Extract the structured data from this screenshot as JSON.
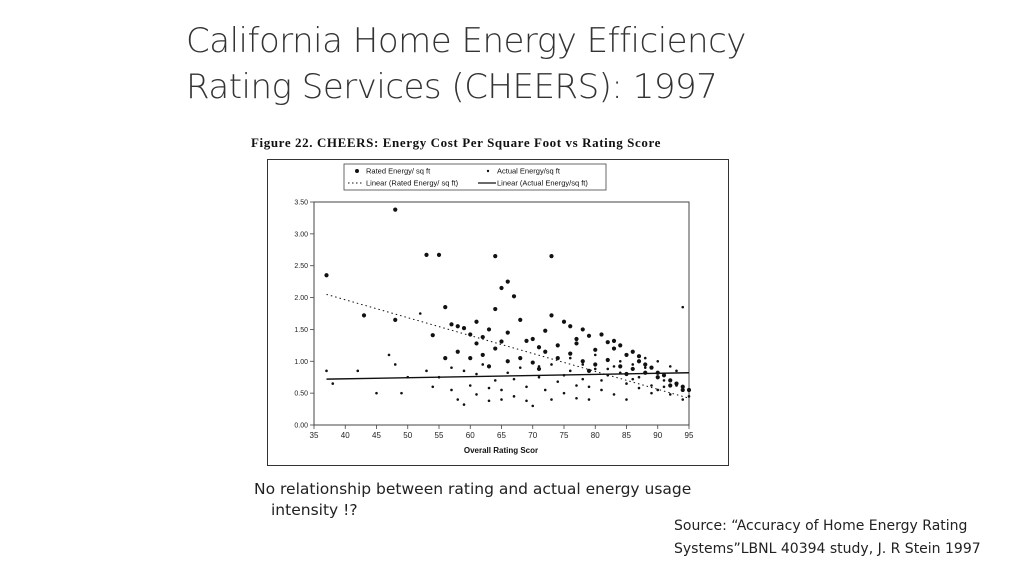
{
  "slide": {
    "title_line1": "California Home Energy Efficiency",
    "title_line2": "Rating Services (CHEERS): 1997",
    "note_line1": "No relationship between rating and actual energy usage",
    "note_line2": "intensity !?",
    "source_line1": "Source: “Accuracy of Home Energy Rating",
    "source_line2": "Systems”LBNL 40394 study, J. R Stein 1997"
  },
  "chart_data": {
    "type": "scatter",
    "title": "Figure 22.  CHEERS:  Energy  Cost  Per  Square  Foot  vs  Rating  Score",
    "xlabel": "Overall Rating Scor",
    "ylabel": "",
    "xlim": [
      35,
      95
    ],
    "ylim": [
      0,
      3.5
    ],
    "xticks": [
      "35",
      "40",
      "45",
      "50",
      "55",
      "60",
      "65",
      "70",
      "75",
      "80",
      "85",
      "90",
      "95"
    ],
    "yticks": [
      "0.00",
      "0.50",
      "1.00",
      "1.50",
      "2.00",
      "2.50",
      "3.00",
      "3.50"
    ],
    "legend_position": "top",
    "grid": false,
    "legend": {
      "rated": "Rated Energy/ sq ft",
      "actual": "Actual Energy/sq ft",
      "rated_trend": "Linear (Rated Energy/ sq ft)",
      "actual_trend": "Linear (Actual Energy/sq ft)"
    },
    "trendlines": [
      {
        "name": "Linear (Rated Energy/ sq ft)",
        "style": "dotted",
        "x": [
          37,
          95
        ],
        "y": [
          2.05,
          0.42
        ]
      },
      {
        "name": "Linear (Actual Energy/sq ft)",
        "style": "solid",
        "x": [
          37,
          95
        ],
        "y": [
          0.72,
          0.82
        ]
      }
    ],
    "series": [
      {
        "name": "Rated Energy/ sq ft",
        "marker": "large",
        "points": [
          [
            37,
            2.35
          ],
          [
            43,
            1.72
          ],
          [
            48,
            3.38
          ],
          [
            48,
            1.65
          ],
          [
            53,
            2.67
          ],
          [
            55,
            2.67
          ],
          [
            64,
            2.65
          ],
          [
            65,
            2.15
          ],
          [
            66,
            2.25
          ],
          [
            73,
            2.65
          ],
          [
            54,
            1.41
          ],
          [
            56,
            1.85
          ],
          [
            57,
            1.58
          ],
          [
            58,
            1.55
          ],
          [
            59,
            1.52
          ],
          [
            60,
            1.42
          ],
          [
            61,
            1.62
          ],
          [
            62,
            1.38
          ],
          [
            63,
            1.5
          ],
          [
            64,
            1.82
          ],
          [
            65,
            1.31
          ],
          [
            66,
            1.45
          ],
          [
            67,
            2.02
          ],
          [
            68,
            1.65
          ],
          [
            70,
            1.35
          ],
          [
            71,
            1.22
          ],
          [
            72,
            1.48
          ],
          [
            73,
            1.72
          ],
          [
            74,
            1.25
          ],
          [
            75,
            1.62
          ],
          [
            76,
            1.55
          ],
          [
            77,
            1.35
          ],
          [
            78,
            1.5
          ],
          [
            79,
            1.4
          ],
          [
            80,
            1.18
          ],
          [
            81,
            1.42
          ],
          [
            82,
            1.3
          ],
          [
            83,
            1.2
          ],
          [
            84,
            1.25
          ],
          [
            85,
            1.1
          ],
          [
            86,
            1.15
          ],
          [
            87,
            1.0
          ],
          [
            88,
            0.95
          ],
          [
            89,
            0.9
          ],
          [
            90,
            0.82
          ],
          [
            91,
            0.78
          ],
          [
            92,
            0.7
          ],
          [
            93,
            0.65
          ],
          [
            94,
            0.6
          ],
          [
            95,
            0.55
          ],
          [
            58,
            1.15
          ],
          [
            60,
            1.05
          ],
          [
            62,
            1.1
          ],
          [
            64,
            1.2
          ],
          [
            66,
            1.0
          ],
          [
            68,
            1.05
          ],
          [
            70,
            0.98
          ],
          [
            72,
            1.15
          ],
          [
            74,
            1.05
          ],
          [
            76,
            1.12
          ],
          [
            78,
            1.0
          ],
          [
            80,
            0.95
          ],
          [
            82,
            1.02
          ],
          [
            84,
            0.92
          ],
          [
            86,
            0.88
          ],
          [
            88,
            0.82
          ],
          [
            90,
            0.75
          ],
          [
            92,
            0.62
          ],
          [
            94,
            0.55
          ],
          [
            61,
            1.28
          ],
          [
            69,
            1.32
          ],
          [
            77,
            1.28
          ],
          [
            83,
            1.32
          ],
          [
            87,
            1.08
          ],
          [
            56,
            1.05
          ],
          [
            63,
            0.92
          ],
          [
            71,
            0.88
          ],
          [
            79,
            0.85
          ],
          [
            85,
            0.8
          ]
        ]
      },
      {
        "name": "Actual Energy/sq ft",
        "marker": "small",
        "points": [
          [
            37,
            0.85
          ],
          [
            38,
            0.65
          ],
          [
            48,
            0.95
          ],
          [
            47,
            1.1
          ],
          [
            49,
            0.5
          ],
          [
            52,
            1.75
          ],
          [
            55,
            0.75
          ],
          [
            57,
            0.55
          ],
          [
            58,
            0.4
          ],
          [
            59,
            0.85
          ],
          [
            60,
            0.62
          ],
          [
            61,
            0.48
          ],
          [
            62,
            0.95
          ],
          [
            63,
            0.38
          ],
          [
            64,
            0.7
          ],
          [
            65,
            0.55
          ],
          [
            66,
            0.82
          ],
          [
            67,
            0.45
          ],
          [
            68,
            0.9
          ],
          [
            69,
            0.6
          ],
          [
            70,
            0.3
          ],
          [
            71,
            0.75
          ],
          [
            72,
            0.55
          ],
          [
            73,
            0.95
          ],
          [
            74,
            0.68
          ],
          [
            75,
            0.5
          ],
          [
            76,
            0.85
          ],
          [
            77,
            0.42
          ],
          [
            78,
            0.72
          ],
          [
            79,
            0.6
          ],
          [
            80,
            0.88
          ],
          [
            81,
            0.55
          ],
          [
            82,
            0.78
          ],
          [
            83,
            0.48
          ],
          [
            84,
            0.82
          ],
          [
            85,
            0.65
          ],
          [
            86,
            0.72
          ],
          [
            87,
            0.58
          ],
          [
            88,
            0.9
          ],
          [
            89,
            0.62
          ],
          [
            90,
            0.55
          ],
          [
            91,
            0.7
          ],
          [
            92,
            0.48
          ],
          [
            93,
            0.62
          ],
          [
            94,
            1.85
          ],
          [
            95,
            0.45
          ],
          [
            57,
            0.9
          ],
          [
            59,
            0.32
          ],
          [
            61,
            0.8
          ],
          [
            63,
            0.58
          ],
          [
            65,
            0.4
          ],
          [
            67,
            0.72
          ],
          [
            69,
            0.38
          ],
          [
            71,
            0.92
          ],
          [
            73,
            0.4
          ],
          [
            75,
            0.78
          ],
          [
            77,
            0.62
          ],
          [
            79,
            0.4
          ],
          [
            81,
            0.7
          ],
          [
            83,
            0.92
          ],
          [
            85,
            0.4
          ],
          [
            87,
            0.75
          ],
          [
            89,
            0.5
          ],
          [
            91,
            0.6
          ],
          [
            93,
            0.85
          ],
          [
            94,
            0.4
          ],
          [
            42,
            0.85
          ],
          [
            45,
            0.5
          ],
          [
            50,
            0.75
          ],
          [
            53,
            0.85
          ],
          [
            54,
            0.6
          ],
          [
            76,
            1.05
          ],
          [
            78,
            0.95
          ],
          [
            80,
            1.1
          ],
          [
            82,
            0.88
          ],
          [
            84,
            1.0
          ],
          [
            86,
            0.95
          ],
          [
            88,
            1.05
          ],
          [
            90,
            1.0
          ],
          [
            92,
            0.92
          ]
        ]
      }
    ]
  }
}
